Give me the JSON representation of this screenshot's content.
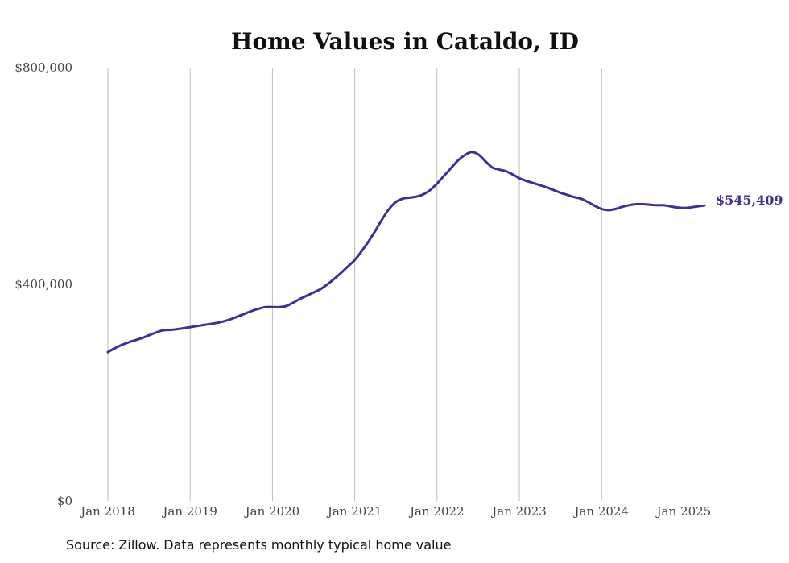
{
  "chart_data": {
    "type": "line",
    "title": "Home Values in Cataldo, ID",
    "xlabel": "",
    "ylabel": "",
    "ylim": [
      0,
      800000
    ],
    "yticks": [
      {
        "value": 0,
        "label": "$0"
      },
      {
        "value": 400000,
        "label": "$400,000"
      },
      {
        "value": 800000,
        "label": "$800,000"
      }
    ],
    "xticks": [
      {
        "value": 2018,
        "label": "Jan 2018"
      },
      {
        "value": 2019,
        "label": "Jan 2019"
      },
      {
        "value": 2020,
        "label": "Jan 2020"
      },
      {
        "value": 2021,
        "label": "Jan 2021"
      },
      {
        "value": 2022,
        "label": "Jan 2022"
      },
      {
        "value": 2023,
        "label": "Jan 2023"
      },
      {
        "value": 2024,
        "label": "Jan 2024"
      },
      {
        "value": 2025,
        "label": "Jan 2025"
      }
    ],
    "xlim": [
      2018,
      2025.25
    ],
    "grid": "vertical",
    "series": [
      {
        "color": "#3d3290",
        "end_label": "$545,409",
        "points": [
          [
            2018.0,
            275000
          ],
          [
            2018.083,
            282000
          ],
          [
            2018.167,
            288000
          ],
          [
            2018.25,
            293000
          ],
          [
            2018.333,
            297000
          ],
          [
            2018.417,
            301000
          ],
          [
            2018.5,
            306000
          ],
          [
            2018.583,
            311000
          ],
          [
            2018.667,
            315000
          ],
          [
            2018.75,
            316000
          ],
          [
            2018.833,
            317000
          ],
          [
            2018.917,
            319000
          ],
          [
            2019.0,
            321000
          ],
          [
            2019.083,
            323000
          ],
          [
            2019.167,
            325000
          ],
          [
            2019.25,
            327000
          ],
          [
            2019.333,
            329000
          ],
          [
            2019.417,
            332000
          ],
          [
            2019.5,
            336000
          ],
          [
            2019.583,
            341000
          ],
          [
            2019.667,
            346000
          ],
          [
            2019.75,
            351000
          ],
          [
            2019.833,
            355000
          ],
          [
            2019.917,
            358000
          ],
          [
            2020.0,
            358000
          ],
          [
            2020.083,
            358000
          ],
          [
            2020.167,
            360000
          ],
          [
            2020.25,
            366000
          ],
          [
            2020.333,
            373000
          ],
          [
            2020.417,
            379000
          ],
          [
            2020.5,
            385000
          ],
          [
            2020.583,
            391000
          ],
          [
            2020.667,
            400000
          ],
          [
            2020.75,
            410000
          ],
          [
            2020.833,
            421000
          ],
          [
            2020.917,
            433000
          ],
          [
            2021.0,
            445000
          ],
          [
            2021.083,
            461000
          ],
          [
            2021.167,
            479000
          ],
          [
            2021.25,
            499000
          ],
          [
            2021.333,
            520000
          ],
          [
            2021.417,
            539000
          ],
          [
            2021.5,
            552000
          ],
          [
            2021.583,
            558000
          ],
          [
            2021.667,
            560000
          ],
          [
            2021.75,
            562000
          ],
          [
            2021.833,
            566000
          ],
          [
            2021.917,
            574000
          ],
          [
            2022.0,
            586000
          ],
          [
            2022.083,
            600000
          ],
          [
            2022.167,
            614000
          ],
          [
            2022.25,
            628000
          ],
          [
            2022.333,
            638000
          ],
          [
            2022.417,
            644000
          ],
          [
            2022.5,
            640000
          ],
          [
            2022.583,
            628000
          ],
          [
            2022.667,
            616000
          ],
          [
            2022.75,
            612000
          ],
          [
            2022.833,
            609000
          ],
          [
            2022.917,
            603000
          ],
          [
            2023.0,
            596000
          ],
          [
            2023.083,
            591000
          ],
          [
            2023.167,
            587000
          ],
          [
            2023.25,
            583000
          ],
          [
            2023.333,
            579000
          ],
          [
            2023.417,
            574000
          ],
          [
            2023.5,
            569000
          ],
          [
            2023.583,
            565000
          ],
          [
            2023.667,
            561000
          ],
          [
            2023.75,
            558000
          ],
          [
            2023.833,
            552000
          ],
          [
            2023.917,
            545000
          ],
          [
            2024.0,
            539000
          ],
          [
            2024.083,
            537000
          ],
          [
            2024.167,
            539000
          ],
          [
            2024.25,
            543000
          ],
          [
            2024.333,
            546000
          ],
          [
            2024.417,
            548000
          ],
          [
            2024.5,
            548000
          ],
          [
            2024.583,
            547000
          ],
          [
            2024.667,
            546000
          ],
          [
            2024.75,
            546000
          ],
          [
            2024.833,
            544000
          ],
          [
            2024.917,
            542000
          ],
          [
            2025.0,
            541000
          ],
          [
            2025.083,
            542000
          ],
          [
            2025.167,
            544000
          ],
          [
            2025.25,
            545409
          ]
        ]
      }
    ]
  },
  "source": "Source: Zillow. Data represents monthly typical home value"
}
